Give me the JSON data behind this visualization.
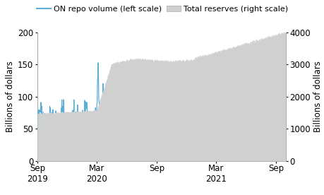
{
  "ylabel_left": "Billions of dollars",
  "ylabel_right": "Billions of dollars",
  "left_ylim": [
    0,
    200
  ],
  "right_ylim": [
    0,
    4000
  ],
  "left_yticks": [
    0,
    50,
    100,
    150,
    200
  ],
  "right_yticks": [
    0,
    1000,
    2000,
    3000,
    4000
  ],
  "on_repo_color": "#5bafd6",
  "total_reserves_color": "#d0d0d0",
  "background_color": "#ffffff",
  "x_tick_labels": [
    "Sep\n2019",
    "Mar\n2020",
    "Sep",
    "Mar\n2021",
    "Sep"
  ],
  "font_size": 8.5,
  "legend_fontsize": 8
}
